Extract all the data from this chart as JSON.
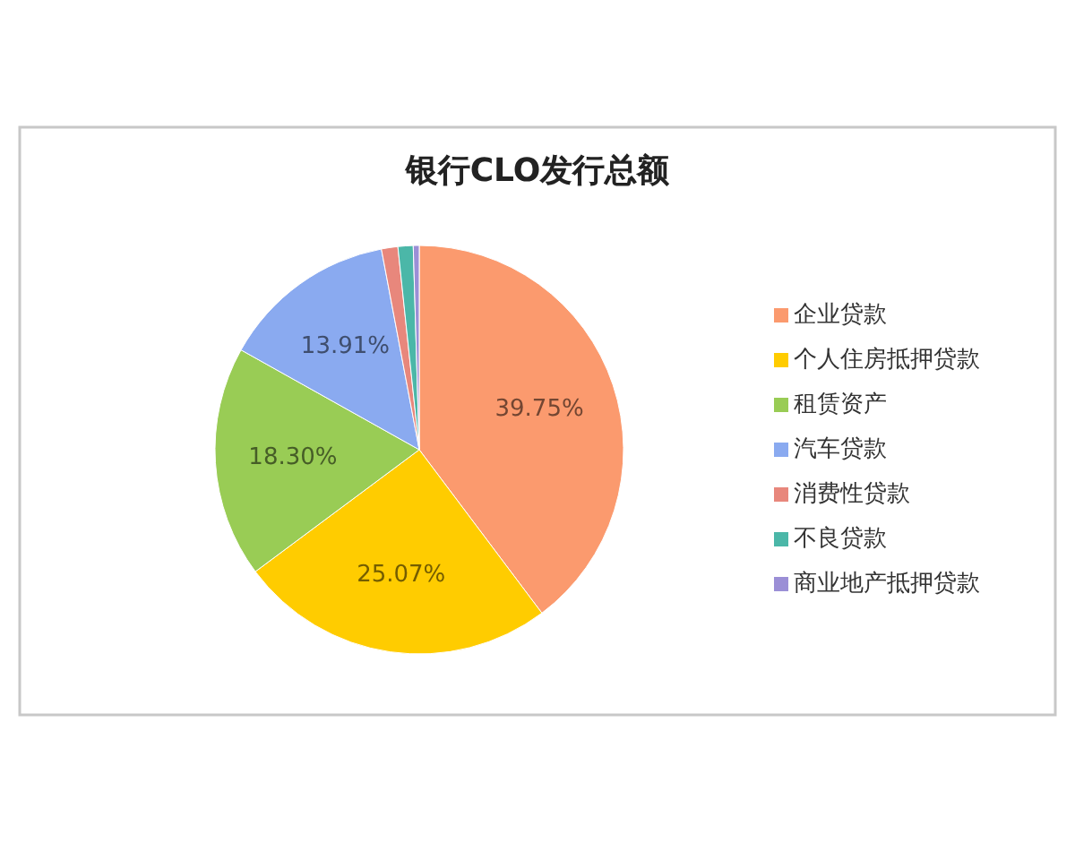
{
  "chart_data": {
    "type": "pie",
    "title": "银行CLO发行总额",
    "categories": [
      "企业贷款",
      "个人住房抵押贷款",
      "租赁资产",
      "汽车贷款",
      "消费性贷款",
      "不良贷款",
      "商业地产抵押贷款"
    ],
    "values": [
      39.75,
      25.07,
      18.3,
      13.91,
      1.3,
      1.2,
      0.47
    ],
    "colors": [
      "#fb9a6e",
      "#ffcc00",
      "#99cc55",
      "#8aaaf0",
      "#e8877c",
      "#4bb7a8",
      "#9b8fd6"
    ],
    "value_labels": [
      "39.75%",
      "25.07%",
      "18.30%",
      "13.91%",
      null,
      null,
      null
    ],
    "legend": "right"
  }
}
